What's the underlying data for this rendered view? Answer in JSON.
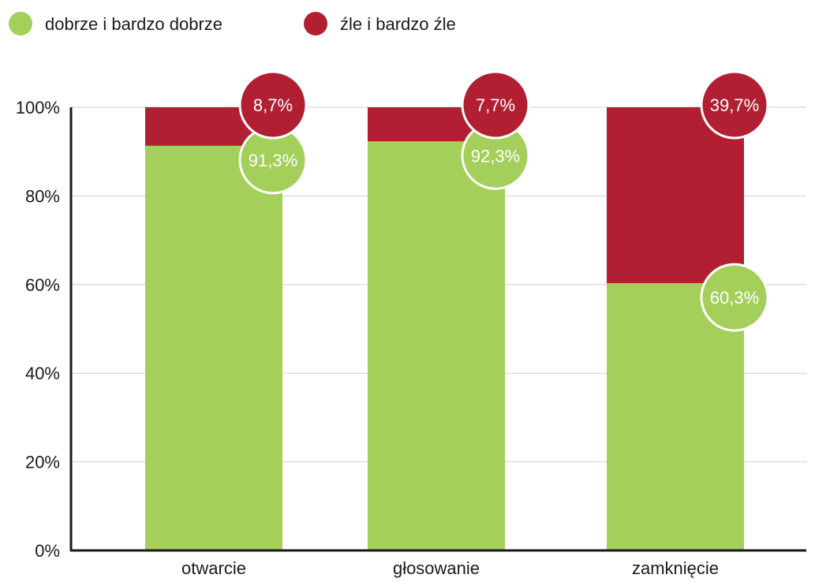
{
  "chart_data": {
    "type": "bar",
    "stacked": true,
    "categories": [
      "otwarcie",
      "głosowanie",
      "zamknięcie"
    ],
    "series": [
      {
        "name": "dobrze i bardzo dobrze",
        "color": "#a3cf5a",
        "values": [
          91.3,
          92.3,
          60.3
        ],
        "labels": [
          "91,3%",
          "92,3%",
          "60,3%"
        ]
      },
      {
        "name": "źle i bardzo źle",
        "color": "#b21f33",
        "values": [
          8.7,
          7.7,
          39.7
        ],
        "labels": [
          "8,7%",
          "7,7%",
          "39,7%"
        ]
      }
    ],
    "ylim": [
      0,
      100
    ],
    "yticks": [
      0,
      20,
      40,
      60,
      80,
      100
    ],
    "ytick_labels": [
      "0%",
      "20%",
      "40%",
      "60%",
      "80%",
      "100%"
    ],
    "grid": true,
    "legend": "top-left",
    "xlabel": "",
    "ylabel": ""
  }
}
